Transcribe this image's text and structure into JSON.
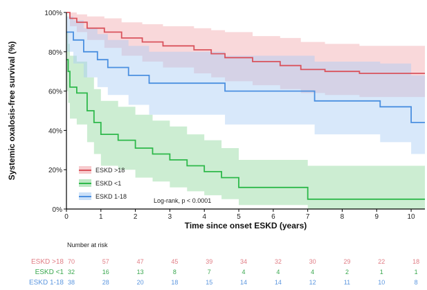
{
  "chart_data": {
    "type": "line",
    "subtype": "kaplan-meier",
    "ylabel": "Systemic oxalosis-free survival (%)",
    "xlabel": "Time since onset ESKD (years)",
    "xlim": [
      0,
      10.4
    ],
    "ylim": [
      0,
      100
    ],
    "x_ticks": [
      0,
      1,
      2,
      3,
      4,
      5,
      6,
      7,
      8,
      9,
      10
    ],
    "y_ticks": [
      {
        "value": 0,
        "label": "0%"
      },
      {
        "value": 20,
        "label": "20%"
      },
      {
        "value": 40,
        "label": "40%"
      },
      {
        "value": 60,
        "label": "60%"
      },
      {
        "value": 80,
        "label": "80%"
      },
      {
        "value": 100,
        "label": "100%"
      }
    ],
    "grid": false,
    "legend_position": "bottom-left",
    "annotation": "Log-rank, p < 0.0001",
    "series": [
      {
        "name": "ESKD >18",
        "color": "#d9535c",
        "band_color": "#f2a8ad",
        "steps": [
          [
            0,
            100
          ],
          [
            0.1,
            97
          ],
          [
            0.3,
            95
          ],
          [
            0.6,
            92
          ],
          [
            1.1,
            90
          ],
          [
            1.6,
            87
          ],
          [
            2.2,
            85
          ],
          [
            2.8,
            83
          ],
          [
            3.7,
            81
          ],
          [
            4.2,
            79
          ],
          [
            4.6,
            77
          ],
          [
            5.4,
            75
          ],
          [
            6.2,
            73
          ],
          [
            6.8,
            71
          ],
          [
            7.5,
            70
          ],
          [
            8.5,
            69
          ],
          [
            10.4,
            69
          ]
        ],
        "upper": [
          [
            0,
            100
          ],
          [
            0.1,
            100
          ],
          [
            0.3,
            99
          ],
          [
            0.6,
            98
          ],
          [
            1.1,
            97
          ],
          [
            1.6,
            95
          ],
          [
            2.2,
            94
          ],
          [
            2.8,
            93
          ],
          [
            3.7,
            92
          ],
          [
            4.2,
            91
          ],
          [
            4.6,
            90
          ],
          [
            5.4,
            88
          ],
          [
            6.2,
            87
          ],
          [
            6.8,
            85
          ],
          [
            7.5,
            84
          ],
          [
            8.5,
            83
          ],
          [
            10.4,
            83
          ]
        ],
        "lower": [
          [
            0,
            100
          ],
          [
            0.1,
            93
          ],
          [
            0.3,
            90
          ],
          [
            0.6,
            86
          ],
          [
            1.1,
            82
          ],
          [
            1.6,
            78
          ],
          [
            2.2,
            75
          ],
          [
            2.8,
            72
          ],
          [
            3.7,
            69
          ],
          [
            4.2,
            67
          ],
          [
            4.6,
            65
          ],
          [
            5.4,
            63
          ],
          [
            6.2,
            61
          ],
          [
            6.8,
            59
          ],
          [
            7.5,
            58
          ],
          [
            8.5,
            57
          ],
          [
            10.4,
            57
          ]
        ]
      },
      {
        "name": "ESKD <1",
        "color": "#2db84a",
        "band_color": "#8fd89c",
        "steps": [
          [
            0,
            76
          ],
          [
            0.05,
            70
          ],
          [
            0.1,
            62
          ],
          [
            0.3,
            59
          ],
          [
            0.6,
            50
          ],
          [
            0.8,
            44
          ],
          [
            1.0,
            38
          ],
          [
            1.5,
            35
          ],
          [
            2.0,
            31
          ],
          [
            2.5,
            28
          ],
          [
            3.0,
            25
          ],
          [
            3.5,
            22
          ],
          [
            4.0,
            19
          ],
          [
            4.5,
            16
          ],
          [
            5.0,
            11
          ],
          [
            7.0,
            5
          ],
          [
            10.4,
            5
          ]
        ],
        "upper": [
          [
            0,
            90
          ],
          [
            0.05,
            84
          ],
          [
            0.1,
            78
          ],
          [
            0.3,
            75
          ],
          [
            0.6,
            67
          ],
          [
            0.8,
            61
          ],
          [
            1.0,
            55
          ],
          [
            1.5,
            52
          ],
          [
            2.0,
            48
          ],
          [
            2.5,
            45
          ],
          [
            3.0,
            42
          ],
          [
            3.5,
            38
          ],
          [
            4.0,
            35
          ],
          [
            4.5,
            31
          ],
          [
            5.0,
            25
          ],
          [
            7.0,
            22
          ],
          [
            10.4,
            22
          ]
        ],
        "lower": [
          [
            0,
            60
          ],
          [
            0.05,
            54
          ],
          [
            0.1,
            46
          ],
          [
            0.3,
            43
          ],
          [
            0.6,
            34
          ],
          [
            0.8,
            28
          ],
          [
            1.0,
            22
          ],
          [
            1.5,
            20
          ],
          [
            2.0,
            16
          ],
          [
            2.5,
            14
          ],
          [
            3.0,
            11
          ],
          [
            3.5,
            9
          ],
          [
            4.0,
            7
          ],
          [
            4.5,
            5
          ],
          [
            5.0,
            2
          ],
          [
            7.0,
            0
          ],
          [
            10.4,
            0
          ]
        ]
      },
      {
        "name": "ESKD 1-18",
        "color": "#4a8fe0",
        "band_color": "#a9cbf4",
        "steps": [
          [
            0,
            90
          ],
          [
            0.2,
            86
          ],
          [
            0.5,
            80
          ],
          [
            0.9,
            76
          ],
          [
            1.2,
            72
          ],
          [
            1.8,
            68
          ],
          [
            2.4,
            64
          ],
          [
            4.6,
            60
          ],
          [
            7.2,
            55
          ],
          [
            9.1,
            52
          ],
          [
            10.0,
            44
          ],
          [
            10.4,
            44
          ]
        ],
        "upper": [
          [
            0,
            98
          ],
          [
            0.2,
            96
          ],
          [
            0.5,
            92
          ],
          [
            0.9,
            89
          ],
          [
            1.2,
            86
          ],
          [
            1.8,
            83
          ],
          [
            2.4,
            80
          ],
          [
            4.6,
            78
          ],
          [
            7.2,
            75
          ],
          [
            9.1,
            74
          ],
          [
            10.0,
            68
          ],
          [
            10.4,
            68
          ]
        ],
        "lower": [
          [
            0,
            80
          ],
          [
            0.2,
            74
          ],
          [
            0.5,
            67
          ],
          [
            0.9,
            62
          ],
          [
            1.2,
            58
          ],
          [
            1.8,
            53
          ],
          [
            2.4,
            48
          ],
          [
            4.6,
            43
          ],
          [
            7.2,
            38
          ],
          [
            9.1,
            34
          ],
          [
            10.0,
            28
          ],
          [
            10.4,
            28
          ]
        ]
      }
    ],
    "risk_table": {
      "title": "Number at risk",
      "times": [
        0,
        1,
        2,
        3,
        4,
        5,
        6,
        7,
        8,
        9,
        10
      ],
      "rows": [
        {
          "label": "ESKD >18",
          "color": "#e07c84",
          "values": [
            "70",
            "57",
            "47",
            "45",
            "39",
            "34",
            "32",
            "30",
            "29",
            "22",
            "18"
          ]
        },
        {
          "label": "ESKD <1",
          "color": "#3aa84f",
          "values": [
            "32",
            "16",
            "13",
            "8",
            "7",
            "4",
            "4",
            "4",
            "2",
            "1",
            "1"
          ]
        },
        {
          "label": "ESKD 1-18",
          "color": "#5b96df",
          "values": [
            "38",
            "28",
            "20",
            "18",
            "15",
            "14",
            "14",
            "12",
            "11",
            "10",
            "8"
          ]
        }
      ]
    }
  }
}
